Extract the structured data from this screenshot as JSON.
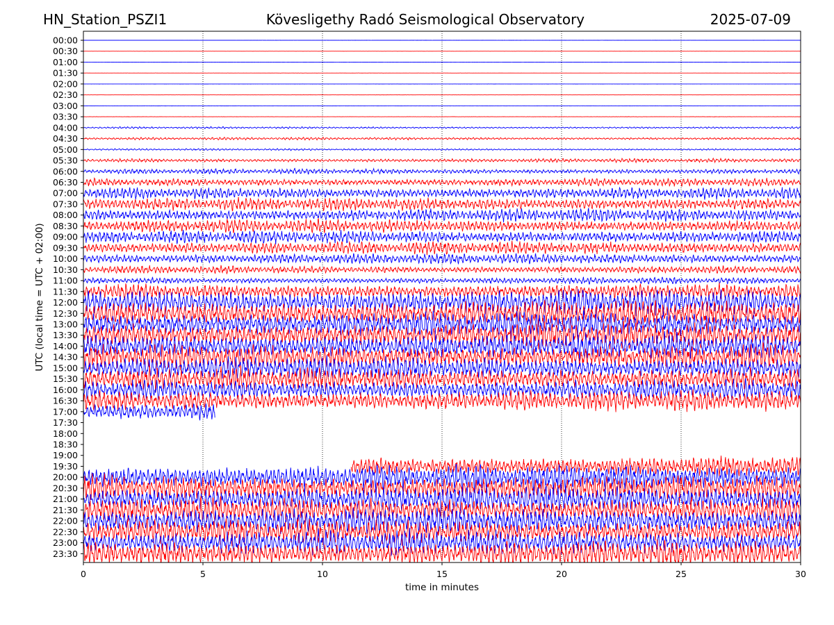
{
  "header": {
    "station": "HN_Station_PSZI1",
    "observatory": "Kövesligethy Radó Seismological Observatory",
    "date": "2025-07-09"
  },
  "colors": {
    "blue": "#0000ff",
    "red": "#ff0000",
    "grid": "#000000"
  },
  "chart_data": {
    "type": "line",
    "title": "Kövesligethy Radó Seismological Observatory",
    "xlabel": "time in minutes",
    "ylabel": "UTC (local time = UTC + 02:00)",
    "xlim": [
      0,
      30
    ],
    "x_ticks": [
      "0",
      "5",
      "10",
      "15",
      "20",
      "25",
      "30"
    ],
    "vertical_grid": "dotted at every 5 minutes",
    "series_colors": "alternating blue (full hours) and red (half hours)",
    "rows": [
      {
        "label": "00:00",
        "color": "blue",
        "amplitude": 0.3
      },
      {
        "label": "00:30",
        "color": "red",
        "amplitude": 0.3
      },
      {
        "label": "01:00",
        "color": "blue",
        "amplitude": 0.3
      },
      {
        "label": "01:30",
        "color": "red",
        "amplitude": 0.3
      },
      {
        "label": "02:00",
        "color": "blue",
        "amplitude": 0.3
      },
      {
        "label": "02:30",
        "color": "red",
        "amplitude": 0.4
      },
      {
        "label": "03:00",
        "color": "blue",
        "amplitude": 0.5
      },
      {
        "label": "03:30",
        "color": "red",
        "amplitude": 0.6
      },
      {
        "label": "04:00",
        "color": "blue",
        "amplitude": 1.5
      },
      {
        "label": "04:30",
        "color": "red",
        "amplitude": 2.0
      },
      {
        "label": "05:00",
        "color": "blue",
        "amplitude": 1.5
      },
      {
        "label": "05:30",
        "color": "red",
        "amplitude": 3.0
      },
      {
        "label": "06:00",
        "color": "blue",
        "amplitude": 4.0
      },
      {
        "label": "06:30",
        "color": "red",
        "amplitude": 6.0
      },
      {
        "label": "07:00",
        "color": "blue",
        "amplitude": 9.0
      },
      {
        "label": "07:30",
        "color": "red",
        "amplitude": 10.0
      },
      {
        "label": "08:00",
        "color": "blue",
        "amplitude": 10.0
      },
      {
        "label": "08:30",
        "color": "red",
        "amplitude": 10.0
      },
      {
        "label": "09:00",
        "color": "blue",
        "amplitude": 10.0
      },
      {
        "label": "09:30",
        "color": "red",
        "amplitude": 10.0
      },
      {
        "label": "10:00",
        "color": "blue",
        "amplitude": 8.0
      },
      {
        "label": "10:30",
        "color": "red",
        "amplitude": 6.0
      },
      {
        "label": "11:00",
        "color": "blue",
        "amplitude": 5.0
      },
      {
        "label": "11:30",
        "color": "red",
        "amplitude": 12.0
      },
      {
        "label": "12:00",
        "color": "blue",
        "amplitude": 20.0
      },
      {
        "label": "12:30",
        "color": "red",
        "amplitude": 20.0
      },
      {
        "label": "13:00",
        "color": "blue",
        "amplitude": 20.0
      },
      {
        "label": "13:30",
        "color": "red",
        "amplitude": 20.0
      },
      {
        "label": "14:00",
        "color": "blue",
        "amplitude": 20.0
      },
      {
        "label": "14:30",
        "color": "red",
        "amplitude": 20.0
      },
      {
        "label": "15:00",
        "color": "blue",
        "amplitude": 18.0
      },
      {
        "label": "15:30",
        "color": "red",
        "amplitude": 18.0
      },
      {
        "label": "16:00",
        "color": "blue",
        "amplitude": 16.0
      },
      {
        "label": "16:30",
        "color": "red",
        "amplitude": 16.0
      },
      {
        "label": "17:00",
        "color": "blue",
        "amplitude": 14.0,
        "end_minute": 5.5
      },
      {
        "label": "17:30",
        "color": "red",
        "amplitude": 0
      },
      {
        "label": "18:00",
        "color": "blue",
        "amplitude": 0
      },
      {
        "label": "18:30",
        "color": "red",
        "amplitude": 0
      },
      {
        "label": "19:00",
        "color": "blue",
        "amplitude": 0
      },
      {
        "label": "19:30",
        "color": "red",
        "amplitude": 16.0,
        "start_minute": 11.2
      },
      {
        "label": "20:00",
        "color": "blue",
        "amplitude": 20.0
      },
      {
        "label": "20:30",
        "color": "red",
        "amplitude": 20.0
      },
      {
        "label": "21:00",
        "color": "blue",
        "amplitude": 20.0
      },
      {
        "label": "21:30",
        "color": "red",
        "amplitude": 20.0
      },
      {
        "label": "22:00",
        "color": "blue",
        "amplitude": 20.0
      },
      {
        "label": "22:30",
        "color": "red",
        "amplitude": 20.0
      },
      {
        "label": "23:00",
        "color": "blue",
        "amplitude": 20.0
      },
      {
        "label": "23:30",
        "color": "red",
        "amplitude": 20.0
      }
    ]
  }
}
